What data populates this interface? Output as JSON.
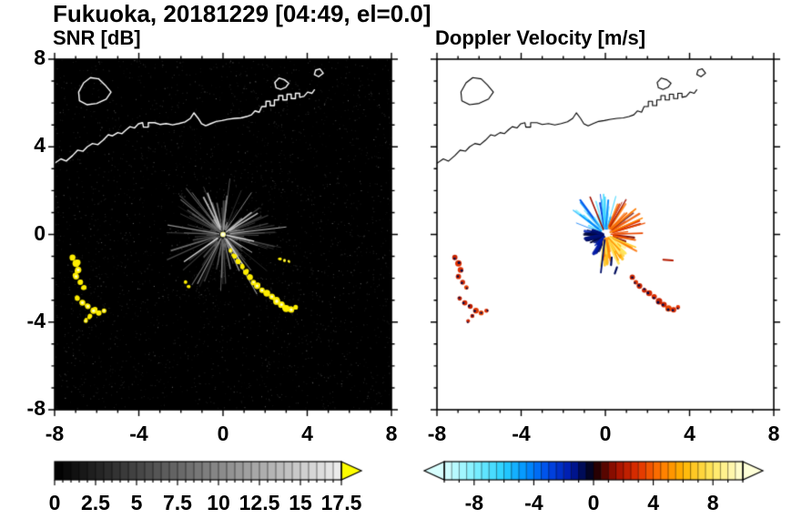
{
  "title": "Fukuoka, 20181229 [04:49, el=0.0]",
  "panels": [
    {
      "title": "SNR [dB]"
    },
    {
      "title": "Doppler Velocity [m/s]"
    }
  ],
  "chart_data": [
    {
      "type": "heatmap",
      "subtype": "radar-ppi",
      "title": "SNR [dB]",
      "site": "Fukuoka",
      "date_label": "20181229",
      "time_label": "04:49",
      "elevation_label": "el=0.0",
      "xlim": [
        -8,
        8
      ],
      "ylim": [
        -8,
        8
      ],
      "xticks": [
        -8,
        -4,
        0,
        4,
        8
      ],
      "yticks": [
        8,
        4,
        0,
        -4,
        -8
      ],
      "minor_tick_step": 1,
      "background": "#000000",
      "radar_center": [
        0,
        0
      ],
      "colorbar": {
        "min": 0,
        "max": 17.5,
        "cell_step": 0.5,
        "label_values": [
          0,
          2.5,
          5,
          7.5,
          10,
          12.5,
          15,
          17.5
        ],
        "colormap": "grayscale-black-to-white",
        "over_arrow_color": "#ffff00"
      },
      "features": {
        "clutter_color": "#ffee00",
        "echo_chain_se": [
          [
            0.35,
            -0.75,
            0.09
          ],
          [
            0.55,
            -1.0,
            0.11
          ],
          [
            0.72,
            -1.25,
            0.12
          ],
          [
            0.92,
            -1.48,
            0.11
          ],
          [
            1.08,
            -1.72,
            0.13
          ],
          [
            1.28,
            -1.95,
            0.14
          ],
          [
            1.45,
            -2.18,
            0.12
          ],
          [
            1.62,
            -2.35,
            0.15
          ],
          [
            1.85,
            -2.55,
            0.13
          ],
          [
            2.08,
            -2.68,
            0.16
          ],
          [
            2.32,
            -2.84,
            0.14
          ],
          [
            2.55,
            -3.05,
            0.17
          ],
          [
            2.78,
            -3.2,
            0.15
          ],
          [
            3.0,
            -3.38,
            0.17
          ],
          [
            3.24,
            -3.44,
            0.14
          ],
          [
            3.45,
            -3.32,
            0.11
          ]
        ],
        "echo_cluster_west_a": [
          [
            -7.15,
            -1.05,
            0.14
          ],
          [
            -6.98,
            -1.32,
            0.17
          ],
          [
            -6.88,
            -1.62,
            0.15
          ],
          [
            -6.98,
            -1.92,
            0.14
          ],
          [
            -6.78,
            -2.18,
            0.13
          ],
          [
            -6.6,
            -2.42,
            0.12
          ]
        ],
        "echo_cluster_west_b": [
          [
            -6.92,
            -2.92,
            0.12
          ],
          [
            -6.68,
            -3.12,
            0.14
          ],
          [
            -6.42,
            -3.28,
            0.13
          ],
          [
            -6.15,
            -3.48,
            0.15
          ],
          [
            -5.9,
            -3.58,
            0.13
          ],
          [
            -5.65,
            -3.48,
            0.11
          ],
          [
            -6.32,
            -3.72,
            0.11
          ],
          [
            -6.52,
            -3.95,
            0.1
          ]
        ],
        "small_echo_1": [
          [
            -1.78,
            -2.18,
            0.08
          ],
          [
            -1.62,
            -2.38,
            0.08
          ]
        ],
        "small_echo_2": [
          [
            2.72,
            -1.12,
            0.07
          ],
          [
            2.92,
            -1.18,
            0.07
          ],
          [
            3.12,
            -1.22,
            0.06
          ]
        ]
      }
    },
    {
      "type": "heatmap",
      "subtype": "radar-ppi",
      "title": "Doppler Velocity [m/s]",
      "xlim": [
        -8,
        8
      ],
      "ylim": [
        -8,
        8
      ],
      "xticks": [
        -8,
        -4,
        0,
        4,
        8
      ],
      "yticks": [
        8,
        4,
        0,
        -4,
        -8
      ],
      "minor_tick_step": 1,
      "background": "#ffffff",
      "radar_center": [
        0,
        0
      ],
      "colorbar": {
        "min": -10,
        "max": 10,
        "cell_step": 0.5,
        "label_values": [
          -8,
          -4,
          0,
          4,
          8
        ],
        "under_arrow": true,
        "over_arrow": true,
        "colormap_stops": [
          [
            -10,
            "#d8ffff"
          ],
          [
            -8,
            "#80f0ff"
          ],
          [
            -6,
            "#28d0ff"
          ],
          [
            -4.5,
            "#0090ff"
          ],
          [
            -3,
            "#0048e8"
          ],
          [
            -1.5,
            "#0018a8"
          ],
          [
            -0.3,
            "#000428"
          ],
          [
            0.3,
            "#2c0000"
          ],
          [
            1.5,
            "#a01000"
          ],
          [
            3,
            "#e03000"
          ],
          [
            4.5,
            "#ff7800"
          ],
          [
            6,
            "#ffb400"
          ],
          [
            8,
            "#ffe860"
          ],
          [
            10,
            "#ffffd8"
          ]
        ]
      },
      "velocity_fan": {
        "toward_sectors_deg": [
          [
            70,
            160
          ],
          [
            160,
            250
          ]
        ],
        "away_sectors_deg": [
          [
            -35,
            70
          ],
          [
            255,
            335
          ]
        ]
      }
    }
  ],
  "coastline": {
    "color_on_dark": "#ffffff",
    "color_on_light": "#000000",
    "main": [
      [
        -8.0,
        3.25
      ],
      [
        -7.7,
        3.45
      ],
      [
        -7.45,
        3.35
      ],
      [
        -7.15,
        3.6
      ],
      [
        -6.9,
        3.85
      ],
      [
        -6.65,
        3.8
      ],
      [
        -6.45,
        4.0
      ],
      [
        -6.2,
        4.15
      ],
      [
        -5.95,
        4.1
      ],
      [
        -5.7,
        4.3
      ],
      [
        -5.45,
        4.55
      ],
      [
        -5.25,
        4.5
      ],
      [
        -5.0,
        4.65
      ],
      [
        -4.8,
        4.6
      ],
      [
        -4.6,
        4.78
      ],
      [
        -4.42,
        4.92
      ],
      [
        -4.2,
        4.86
      ],
      [
        -4.02,
        5.05
      ],
      [
        -3.82,
        5.1
      ],
      [
        -3.78,
        4.9
      ],
      [
        -3.55,
        4.9
      ],
      [
        -3.55,
        5.1
      ],
      [
        -3.25,
        5.1
      ],
      [
        -3.0,
        5.02
      ],
      [
        -2.7,
        5.06
      ],
      [
        -2.4,
        5.0
      ],
      [
        -2.1,
        5.06
      ],
      [
        -1.8,
        5.14
      ],
      [
        -1.55,
        5.3
      ],
      [
        -1.38,
        5.55
      ],
      [
        -1.18,
        5.3
      ],
      [
        -1.02,
        5.05
      ],
      [
        -0.82,
        4.96
      ],
      [
        -0.58,
        5.06
      ],
      [
        -0.32,
        5.16
      ],
      [
        -0.05,
        5.2
      ],
      [
        0.25,
        5.26
      ],
      [
        0.55,
        5.3
      ],
      [
        0.85,
        5.32
      ],
      [
        1.12,
        5.38
      ],
      [
        1.35,
        5.46
      ],
      [
        1.52,
        5.64
      ],
      [
        1.72,
        5.58
      ],
      [
        1.84,
        5.84
      ],
      [
        2.04,
        5.84
      ],
      [
        2.04,
        6.08
      ],
      [
        2.24,
        6.08
      ],
      [
        2.24,
        5.88
      ],
      [
        2.44,
        5.88
      ],
      [
        2.44,
        6.14
      ],
      [
        2.64,
        6.14
      ],
      [
        2.64,
        6.34
      ],
      [
        2.84,
        6.34
      ],
      [
        2.84,
        6.14
      ],
      [
        3.04,
        6.14
      ],
      [
        3.04,
        6.4
      ],
      [
        3.24,
        6.4
      ],
      [
        3.24,
        6.2
      ],
      [
        3.44,
        6.2
      ],
      [
        3.44,
        6.44
      ],
      [
        3.64,
        6.44
      ],
      [
        3.64,
        6.26
      ],
      [
        3.84,
        6.3
      ],
      [
        4.02,
        6.5
      ],
      [
        4.22,
        6.44
      ],
      [
        4.34,
        6.6
      ]
    ],
    "islands": [
      [
        [
          -6.82,
          6.1
        ],
        [
          -6.45,
          5.92
        ],
        [
          -6.0,
          5.98
        ],
        [
          -5.55,
          6.18
        ],
        [
          -5.32,
          6.5
        ],
        [
          -5.6,
          6.82
        ],
        [
          -5.9,
          7.1
        ],
        [
          -6.3,
          7.16
        ],
        [
          -6.62,
          6.92
        ],
        [
          -6.86,
          6.5
        ]
      ],
      [
        [
          2.52,
          6.7
        ],
        [
          2.74,
          6.62
        ],
        [
          2.98,
          6.72
        ],
        [
          3.12,
          6.9
        ],
        [
          2.92,
          7.06
        ],
        [
          2.66,
          7.14
        ],
        [
          2.46,
          6.94
        ]
      ],
      [
        [
          4.34,
          7.3
        ],
        [
          4.54,
          7.2
        ],
        [
          4.76,
          7.36
        ],
        [
          4.6,
          7.56
        ],
        [
          4.4,
          7.5
        ]
      ]
    ]
  }
}
